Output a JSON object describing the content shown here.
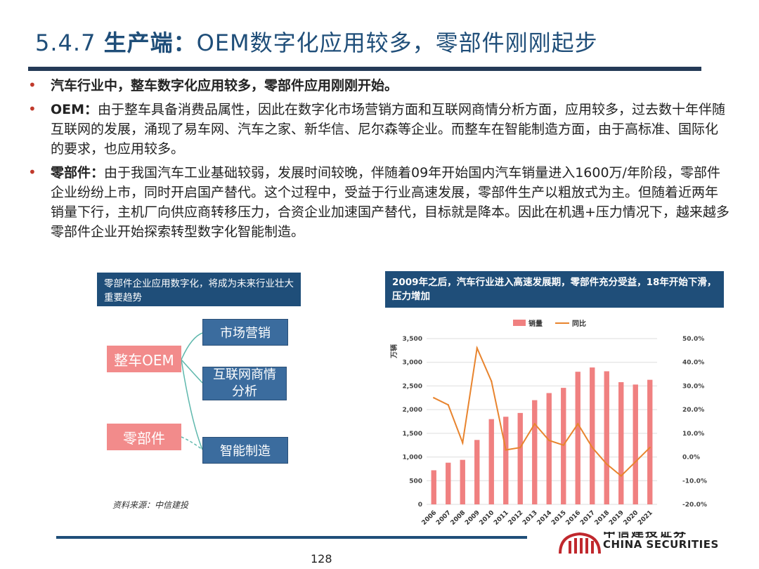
{
  "header": {
    "section_number": "5.4.7",
    "title_bold": "生产端：",
    "title_rest": "OEM数字化应用较多，零部件刚刚起步"
  },
  "bullets": [
    {
      "lead": "",
      "text": "汽车行业中，整车数字化应用较多，零部件应用刚刚开始。"
    },
    {
      "lead": "OEM：",
      "text": "由于整车具备消费品属性，因此在数字化市场营销方面和互联网商情分析方面，应用较多，过去数十年伴随互联网的发展，涌现了易车网、汽车之家、新华信、尼尔森等企业。而整车在智能制造方面，由于高标准、国际化的要求，也应用较多。"
    },
    {
      "lead": "零部件：",
      "text": "由于我国汽车工业基础较弱，发展时间较晚，伴随着09年开始国内汽车销量进入1600万/年阶段，零部件企业纷纷上市，同时开启国产替代。这个过程中，受益于行业高速发展，零部件生产以粗放式为主。但随着近两年销量下行，主机厂向供应商转移压力，合资企业加速国产替代，目标就是降本。因此在机遇+压力情况下，越来越多零部件企业开始探索转型数字化智能制造。"
    }
  ],
  "diagram": {
    "caption": "零部件企业应用数字化，将成为未来行业壮大重要趋势",
    "left_nodes": [
      "整车OEM",
      "零部件"
    ],
    "right_nodes": [
      "市场营销",
      "互联网商情分析",
      "智能制造"
    ],
    "source": "资料来源：中信建投"
  },
  "chart_caption": "2009年之后，汽车行业进入高速发展期，零部件充分受益，18年开始下滑，压力增加",
  "chart_data": {
    "type": "bar",
    "categories": [
      "2006",
      "2007",
      "2008",
      "2009",
      "2010",
      "2011",
      "2012",
      "2013",
      "2014",
      "2015",
      "2016",
      "2017",
      "2018",
      "2019",
      "2020",
      "2021"
    ],
    "series": [
      {
        "name": "销量",
        "kind": "bar",
        "color": "#f08080",
        "values": [
          720,
          880,
          940,
          1360,
          1800,
          1850,
          1930,
          2200,
          2350,
          2460,
          2800,
          2890,
          2810,
          2580,
          2530,
          2630
        ]
      },
      {
        "name": "同比",
        "kind": "line",
        "color": "#e8842e",
        "values": [
          0.25,
          0.22,
          0.06,
          0.46,
          0.32,
          0.03,
          0.04,
          0.14,
          0.07,
          0.05,
          0.14,
          0.04,
          -0.03,
          -0.08,
          -0.02,
          0.04
        ]
      }
    ],
    "ylabel": "万辆",
    "ylim": [
      0,
      3500
    ],
    "y_ticks": [
      "0",
      "500",
      "1,000",
      "1,500",
      "2,000",
      "2,500",
      "3,000",
      "3,500"
    ],
    "y2lim": [
      -0.2,
      0.5
    ],
    "y2_ticks": [
      "-20.0%",
      "-10.0%",
      "0.0%",
      "10.0%",
      "20.0%",
      "30.0%",
      "40.0%",
      "50.0%"
    ],
    "grid": true,
    "legend_position": "top"
  },
  "footer": {
    "page_number": "128",
    "logo_text": "CHINA SECURITIES",
    "logo_cn": "中信建投证券"
  }
}
